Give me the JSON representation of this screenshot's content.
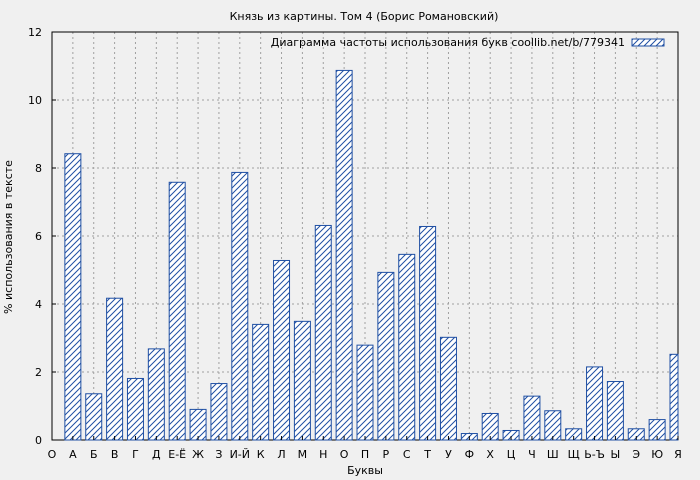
{
  "chart_data": {
    "type": "bar",
    "title": "Князь из картины. Том 4 (Борис Романовский)",
    "xlabel": "Буквы",
    "ylabel": "% использования в тексте",
    "ylim": [
      0,
      12
    ],
    "yticks": [
      "0",
      "2",
      "4",
      "6",
      "8",
      "10",
      "12"
    ],
    "grid": true,
    "legend_position": "top-right",
    "categories": [
      "О",
      "А",
      "Б",
      "В",
      "Г",
      "Д",
      "Е-Ё",
      "Ж",
      "З",
      "И-Й",
      "К",
      "Л",
      "М",
      "Н",
      "О",
      "П",
      "Р",
      "С",
      "Т",
      "У",
      "Ф",
      "Х",
      "Ц",
      "Ч",
      "Ш",
      "Щ",
      "Ь-Ъ",
      "Ы",
      "Э",
      "Ю",
      "Я"
    ],
    "series": [
      {
        "name": "Диаграмма частоты использования букв coollib.net/b/779341",
        "color": "#1f4fa3",
        "values": [
          null,
          8.42,
          1.36,
          4.17,
          1.81,
          2.68,
          7.58,
          0.9,
          1.66,
          7.87,
          3.4,
          5.28,
          3.49,
          6.31,
          10.87,
          2.79,
          4.93,
          5.46,
          6.28,
          3.02,
          0.19,
          0.78,
          0.28,
          1.29,
          0.86,
          0.33,
          2.15,
          1.72,
          0.33,
          0.6,
          2.52
        ]
      }
    ]
  }
}
